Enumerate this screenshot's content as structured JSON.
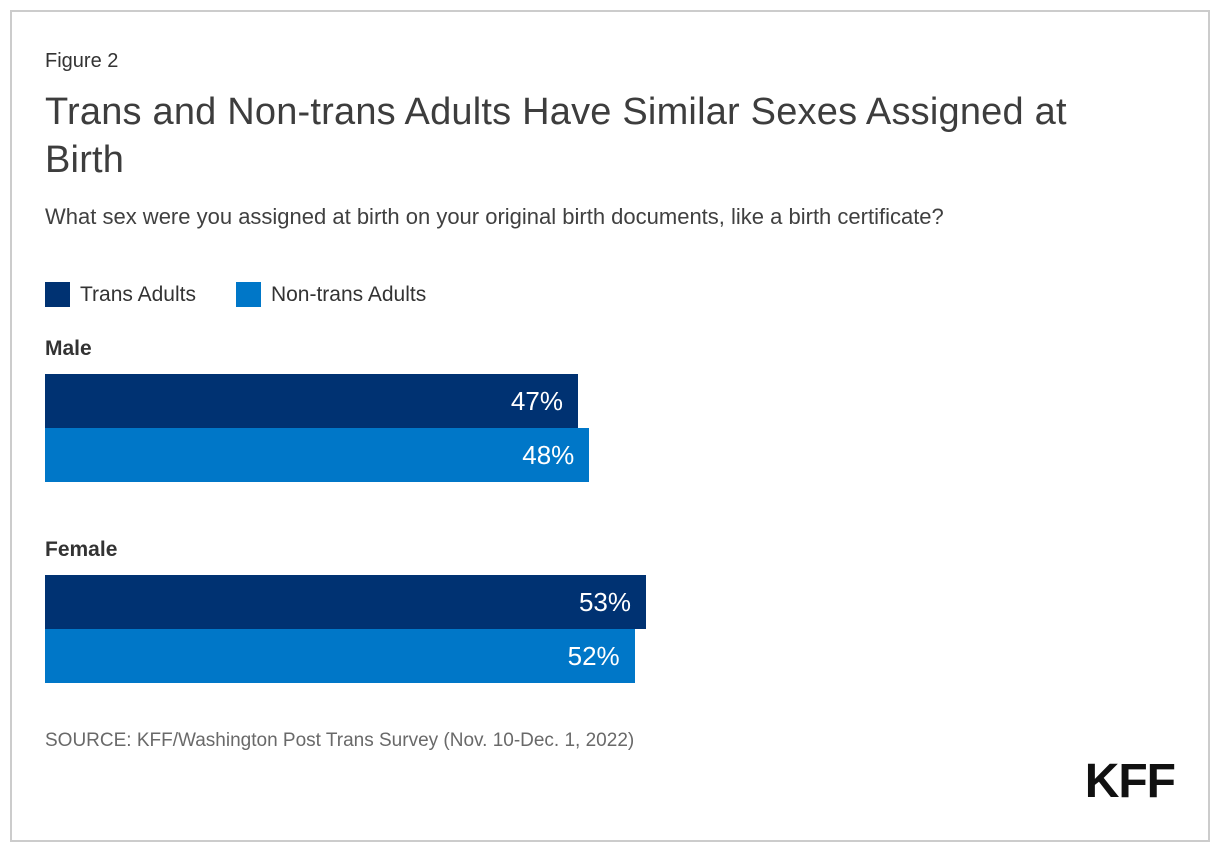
{
  "figure_label": "Figure 2",
  "title": "Trans and Non-trans Adults Have Similar Sexes Assigned at Birth",
  "subtitle": "What sex were you assigned at birth on your original birth documents, like a birth certificate?",
  "legend": [
    {
      "label": "Trans Adults",
      "color": "#003272"
    },
    {
      "label": "Non-trans Adults",
      "color": "#0077C8"
    }
  ],
  "chart_data": {
    "type": "bar",
    "orientation": "horizontal",
    "categories": [
      "Male",
      "Female"
    ],
    "series": [
      {
        "name": "Trans Adults",
        "color": "#003272",
        "values": [
          47,
          53
        ]
      },
      {
        "name": "Non-trans Adults",
        "color": "#0077C8",
        "values": [
          48,
          52
        ]
      }
    ],
    "value_suffix": "%",
    "xlim": [
      0,
      100
    ],
    "grid": false,
    "value_labels": "inside-end",
    "value_label_color": "#ffffff"
  },
  "source": "SOURCE: KFF/Washington Post Trans Survey (Nov. 10-Dec. 1, 2022)",
  "logo_text": "KFF"
}
